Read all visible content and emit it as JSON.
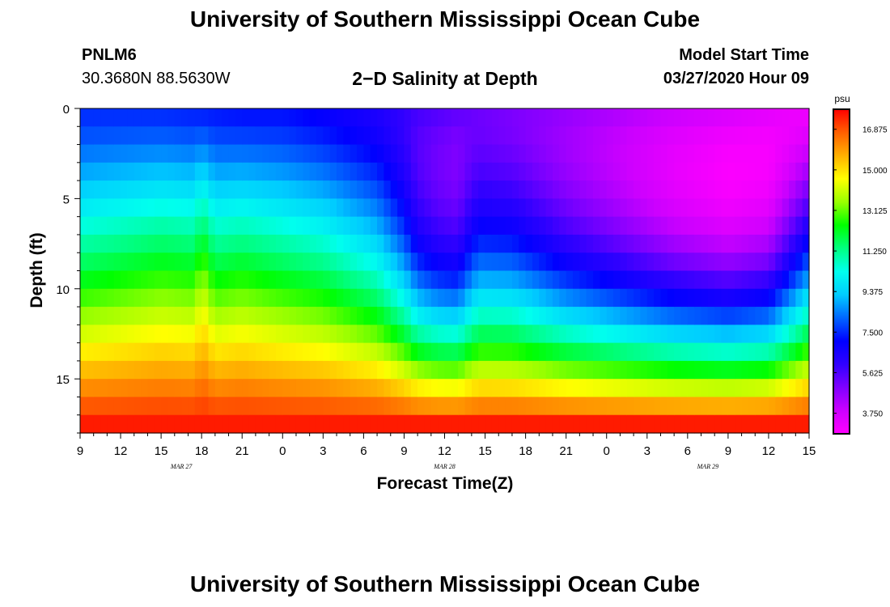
{
  "header": {
    "title": "University of Southern Mississippi Ocean Cube",
    "station_id": "PNLM6",
    "coords": "30.3680N 88.5630W",
    "chart_title": "2−D Salinity at Depth",
    "model_start_label": "Model Start Time",
    "model_start_value": "03/27/2020 Hour 09"
  },
  "footer": {
    "title": "University of Southern Mississippi Ocean Cube"
  },
  "chart_data": {
    "type": "heatmap",
    "title": "2−D Salinity at Depth",
    "xlabel": "Forecast Time(Z)",
    "ylabel": "Depth (ft)",
    "x_start_hour": 9,
    "x_range_hours": [
      0,
      54
    ],
    "x_ticks": [
      {
        "h": 0,
        "label": "9"
      },
      {
        "h": 3,
        "label": "12"
      },
      {
        "h": 6,
        "label": "15"
      },
      {
        "h": 9,
        "label": "18"
      },
      {
        "h": 12,
        "label": "21"
      },
      {
        "h": 15,
        "label": "0"
      },
      {
        "h": 18,
        "label": "3"
      },
      {
        "h": 21,
        "label": "6"
      },
      {
        "h": 24,
        "label": "9"
      },
      {
        "h": 27,
        "label": "12"
      },
      {
        "h": 30,
        "label": "15"
      },
      {
        "h": 33,
        "label": "18"
      },
      {
        "h": 36,
        "label": "21"
      },
      {
        "h": 39,
        "label": "0"
      },
      {
        "h": 42,
        "label": "3"
      },
      {
        "h": 45,
        "label": "6"
      },
      {
        "h": 48,
        "label": "9"
      },
      {
        "h": 51,
        "label": "12"
      },
      {
        "h": 54,
        "label": "15"
      }
    ],
    "date_labels": [
      {
        "h": 7.5,
        "label": "MAR 27"
      },
      {
        "h": 27,
        "label": "MAR 28"
      },
      {
        "h": 46.5,
        "label": "MAR 29"
      }
    ],
    "y_range_ft": [
      0,
      18
    ],
    "y_ticks": [
      0,
      5,
      10,
      15
    ],
    "depth_levels_ft": [
      0,
      1,
      2,
      3,
      4,
      5,
      6,
      7,
      8,
      9,
      10,
      11,
      12,
      13,
      14,
      15,
      16,
      17
    ],
    "colorbar": {
      "unit": "psu",
      "min": 2.8,
      "max": 17.8,
      "ticks": [
        "16.875",
        "15.000",
        "13.125",
        "11.250",
        "9.375",
        "7.500",
        "5.625",
        "3.750"
      ],
      "colors": [
        "#ff00ff",
        "#cc00ff",
        "#8000ff",
        "#3000ff",
        "#0000ff",
        "#0066ff",
        "#00ccff",
        "#00ffee",
        "#00ff80",
        "#00ff00",
        "#99ff00",
        "#ffff00",
        "#ffb000",
        "#ff6000",
        "#ff0000"
      ]
    },
    "profiles": [
      {
        "h": 0,
        "surface": 7.6,
        "wave": 0.0
      },
      {
        "h": 3,
        "surface": 7.6,
        "wave": 0.3
      },
      {
        "h": 6,
        "surface": 7.6,
        "wave": 0.6
      },
      {
        "h": 8.5,
        "surface": 7.5,
        "wave": 0.5
      },
      {
        "h": 9,
        "surface": 7.5,
        "wave": 1.4
      },
      {
        "h": 10,
        "surface": 7.4,
        "wave": 0.3
      },
      {
        "h": 12,
        "surface": 7.3,
        "wave": 0.6
      },
      {
        "h": 15,
        "surface": 7.3,
        "wave": 0.2
      },
      {
        "h": 18,
        "surface": 7.0,
        "wave": 0.0
      },
      {
        "h": 22,
        "surface": 6.5,
        "wave": -0.8
      },
      {
        "h": 24,
        "surface": 6.0,
        "wave": -2.0
      },
      {
        "h": 25,
        "surface": 5.7,
        "wave": -3.0
      },
      {
        "h": 26.5,
        "surface": 5.5,
        "wave": -3.5
      },
      {
        "h": 28,
        "surface": 5.3,
        "wave": -3.6
      },
      {
        "h": 28.5,
        "surface": 5.3,
        "wave": -3.0
      },
      {
        "h": 29.5,
        "surface": 5.2,
        "wave": -2.0
      },
      {
        "h": 32,
        "surface": 5.0,
        "wave": -2.0
      },
      {
        "h": 36,
        "surface": 4.6,
        "wave": -3.0
      },
      {
        "h": 40,
        "surface": 4.2,
        "wave": -3.6
      },
      {
        "h": 44,
        "surface": 3.8,
        "wave": -4.2
      },
      {
        "h": 48,
        "surface": 3.5,
        "wave": -4.5
      },
      {
        "h": 51,
        "surface": 3.3,
        "wave": -4.0
      },
      {
        "h": 52.5,
        "surface": 3.2,
        "wave": -2.5
      },
      {
        "h": 54,
        "surface": 3.2,
        "wave": -1.0
      }
    ]
  }
}
